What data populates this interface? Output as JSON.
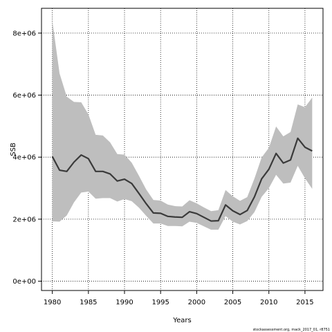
{
  "chart_data": {
    "type": "area",
    "xlabel": "Years",
    "ylabel": "SSB",
    "footnote": "stockassessment.org, mack_2017_01, r8751",
    "xlim": [
      1978.5,
      2017.5
    ],
    "ylim": [
      -300000,
      8800000
    ],
    "xticks": [
      1980,
      1985,
      1990,
      1995,
      2000,
      2005,
      2010,
      2015
    ],
    "yticks": [
      0,
      2000000,
      4000000,
      6000000,
      8000000
    ],
    "ytick_labels": [
      "0e+00",
      "2e+06",
      "4e+06",
      "6e+06",
      "8e+06"
    ],
    "grid": true,
    "colors": {
      "band": "#bebebe",
      "line": "#3a3a3a",
      "grid": "#000000"
    },
    "x": [
      1980,
      1981,
      1982,
      1983,
      1984,
      1985,
      1986,
      1987,
      1988,
      1989,
      1990,
      1991,
      1992,
      1993,
      1994,
      1995,
      1996,
      1997,
      1998,
      1999,
      2000,
      2001,
      2002,
      2003,
      2004,
      2005,
      2006,
      2007,
      2008,
      2009,
      2010,
      2011,
      2012,
      2013,
      2014,
      2015,
      2016
    ],
    "series": [
      {
        "role": "estimate",
        "values": [
          4020000,
          3580000,
          3540000,
          3840000,
          4070000,
          3950000,
          3540000,
          3540000,
          3460000,
          3230000,
          3290000,
          3150000,
          2830000,
          2500000,
          2200000,
          2190000,
          2090000,
          2070000,
          2060000,
          2240000,
          2180000,
          2060000,
          1940000,
          1950000,
          2460000,
          2270000,
          2150000,
          2280000,
          2720000,
          3300000,
          3610000,
          4120000,
          3810000,
          3910000,
          4610000,
          4320000,
          4200000
        ]
      },
      {
        "role": "upper",
        "values": [
          8400000,
          6700000,
          5950000,
          5780000,
          5770000,
          5380000,
          4720000,
          4700000,
          4480000,
          4100000,
          4080000,
          3820000,
          3400000,
          2960000,
          2620000,
          2600000,
          2470000,
          2420000,
          2410000,
          2610000,
          2510000,
          2380000,
          2260000,
          2290000,
          2940000,
          2740000,
          2590000,
          2710000,
          3310000,
          3990000,
          4300000,
          4990000,
          4670000,
          4810000,
          5700000,
          5610000,
          5920000
        ]
      },
      {
        "role": "lower",
        "values": [
          1930000,
          1920000,
          2120000,
          2540000,
          2860000,
          2890000,
          2660000,
          2680000,
          2680000,
          2570000,
          2650000,
          2580000,
          2370000,
          2110000,
          1860000,
          1860000,
          1780000,
          1780000,
          1770000,
          1920000,
          1880000,
          1770000,
          1660000,
          1660000,
          2100000,
          1920000,
          1830000,
          1940000,
          2230000,
          2720000,
          3000000,
          3430000,
          3150000,
          3180000,
          3720000,
          3320000,
          2980000
        ]
      }
    ]
  }
}
